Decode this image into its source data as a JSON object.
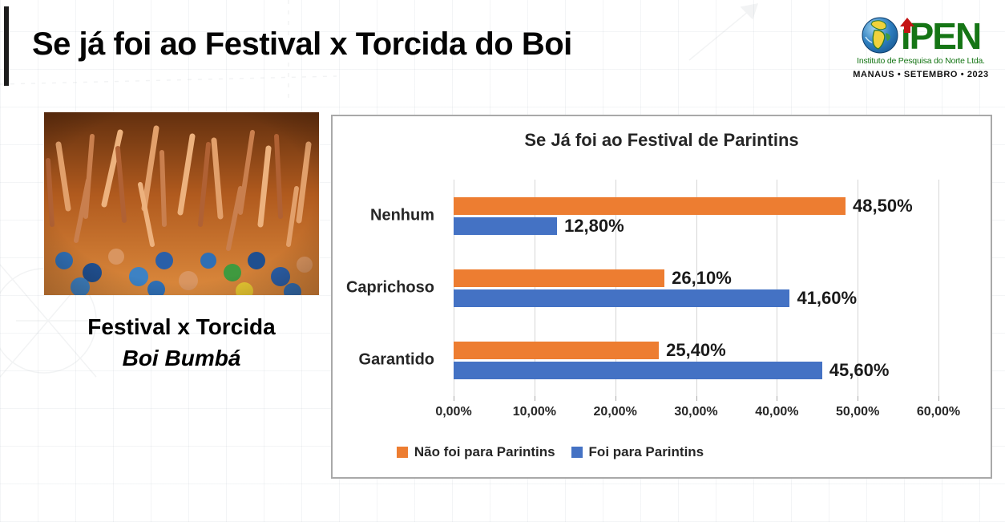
{
  "slide": {
    "title": "Se já foi ao Festival x Torcida do Boi",
    "caption_line1": "Festival x Torcida",
    "caption_line2": "Boi Bumbá"
  },
  "logo": {
    "brand": "iPEN",
    "subtitle": "Instituto de Pesquisa do Norte Ltda.",
    "tagline": "MANAUS • SETEMBRO • 2023",
    "brand_color": "#157515",
    "arrow_color": "#c41414"
  },
  "chart_data": {
    "type": "bar",
    "orientation": "horizontal",
    "title": "Se Já foi ao Festival de Parintins",
    "categories": [
      "Nenhum",
      "Caprichoso",
      "Garantido"
    ],
    "series": [
      {
        "name": "Não foi para Parintins",
        "color": "#ED7D31",
        "values": [
          48.5,
          26.1,
          25.4
        ],
        "labels": [
          "48,50%",
          "26,10%",
          "25,40%"
        ]
      },
      {
        "name": "Foi para Parintins",
        "color": "#4472C4",
        "values": [
          12.8,
          41.6,
          45.6
        ],
        "labels": [
          "12,80%",
          "41,60%",
          "45,60%"
        ]
      }
    ],
    "xlim": [
      0,
      60
    ],
    "x_ticks": [
      "0,00%",
      "10,00%",
      "20,00%",
      "30,00%",
      "40,00%",
      "50,00%",
      "60,00%"
    ],
    "grid": true,
    "legend_position": "bottom"
  }
}
